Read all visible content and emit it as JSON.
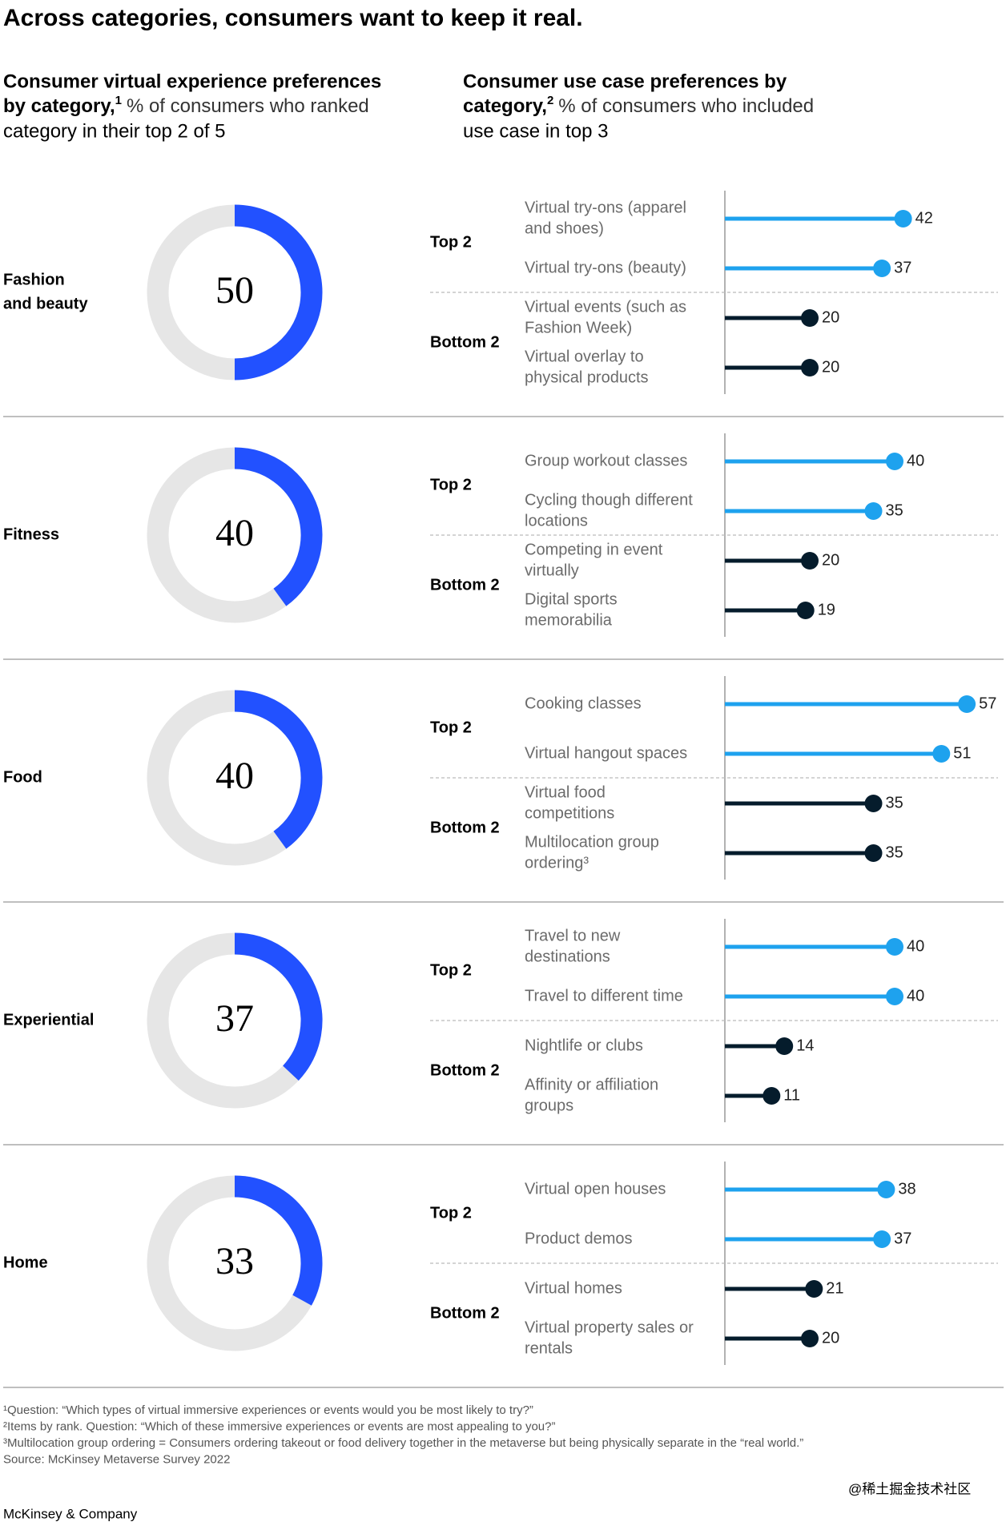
{
  "title": "Across categories, consumers want to keep it real.",
  "left_heading": {
    "bold": [
      "Consumer virtual experience preferences",
      "by category,"
    ],
    "sup": "1",
    "text": [
      "% of consumers who ranked",
      "category in their top 2 of 5"
    ]
  },
  "right_heading": {
    "bold": [
      "Consumer use case preferences by",
      "category,"
    ],
    "sup": "2",
    "text": [
      "% of consumers who included",
      "use case in top 3"
    ]
  },
  "chart_data": [
    {
      "type": "panel",
      "category": [
        "Fashion",
        "and beauty"
      ],
      "share": 50,
      "share_color": "#2251ff",
      "groups": [
        {
          "name": "Top 2",
          "color": "#1ea2ee",
          "labels": [
            [
              "Virtual try-ons (apparel",
              "and shoes)"
            ],
            [
              "Virtual try-ons (beauty)"
            ]
          ],
          "values": [
            42,
            37
          ]
        },
        {
          "name": "Bottom 2",
          "color": "#051c2c",
          "labels": [
            [
              "Virtual events (such as",
              "Fashion Week)"
            ],
            [
              "Virtual overlay to",
              "physical products"
            ]
          ],
          "values": [
            20,
            20
          ]
        }
      ]
    },
    {
      "type": "panel",
      "category": [
        "Fitness"
      ],
      "share": 40,
      "share_color": "#2251ff",
      "groups": [
        {
          "name": "Top 2",
          "color": "#1ea2ee",
          "labels": [
            [
              "Group workout classes"
            ],
            [
              "Cycling though different",
              "locations"
            ]
          ],
          "values": [
            40,
            35
          ]
        },
        {
          "name": "Bottom 2",
          "color": "#051c2c",
          "labels": [
            [
              "Competing in event",
              "virtually"
            ],
            [
              "Digital sports",
              "memorabilia"
            ]
          ],
          "values": [
            20,
            19
          ]
        }
      ]
    },
    {
      "type": "panel",
      "category": [
        "Food"
      ],
      "share": 40,
      "share_color": "#2251ff",
      "groups": [
        {
          "name": "Top 2",
          "color": "#1ea2ee",
          "labels": [
            [
              "Cooking classes"
            ],
            [
              "Virtual hangout spaces"
            ]
          ],
          "values": [
            57,
            51
          ]
        },
        {
          "name": "Bottom 2",
          "color": "#051c2c",
          "labels": [
            [
              "Virtual food",
              "competitions"
            ],
            [
              "Multilocation group",
              "ordering³"
            ]
          ],
          "values": [
            35,
            35
          ]
        }
      ]
    },
    {
      "type": "panel",
      "category": [
        "Experiential"
      ],
      "share": 37,
      "share_color": "#2251ff",
      "groups": [
        {
          "name": "Top 2",
          "color": "#1ea2ee",
          "labels": [
            [
              "Travel to new",
              "destinations"
            ],
            [
              "Travel to different time"
            ]
          ],
          "values": [
            40,
            40
          ]
        },
        {
          "name": "Bottom 2",
          "color": "#051c2c",
          "labels": [
            [
              "Nightlife or clubs"
            ],
            [
              "Affinity or affiliation",
              "groups"
            ]
          ],
          "values": [
            14,
            11
          ]
        }
      ]
    },
    {
      "type": "panel",
      "category": [
        "Home"
      ],
      "share": 33,
      "share_color": "#2251ff",
      "groups": [
        {
          "name": "Top 2",
          "color": "#1ea2ee",
          "labels": [
            [
              "Virtual open houses"
            ],
            [
              "Product demos"
            ]
          ],
          "values": [
            38,
            37
          ]
        },
        {
          "name": "Bottom 2",
          "color": "#051c2c",
          "labels": [
            [
              "Virtual homes"
            ],
            [
              "Virtual property sales or",
              "rentals"
            ]
          ],
          "values": [
            21,
            20
          ]
        }
      ]
    }
  ],
  "footnotes": [
    "¹Question: “Which types of virtual immersive experiences or events would you be most likely to try?”",
    "²Items by rank. Question: “Which of these immersive experiences or events are most appealing to you?”",
    "³Multilocation group ordering = Consumers ordering takeout or food delivery together in the metaverse but being physically separate in the “real world.”",
    " Source: McKinsey Metaverse Survey 2022"
  ],
  "watermark": "@稀土掘金技术社区",
  "brand": "McKinsey & Company"
}
